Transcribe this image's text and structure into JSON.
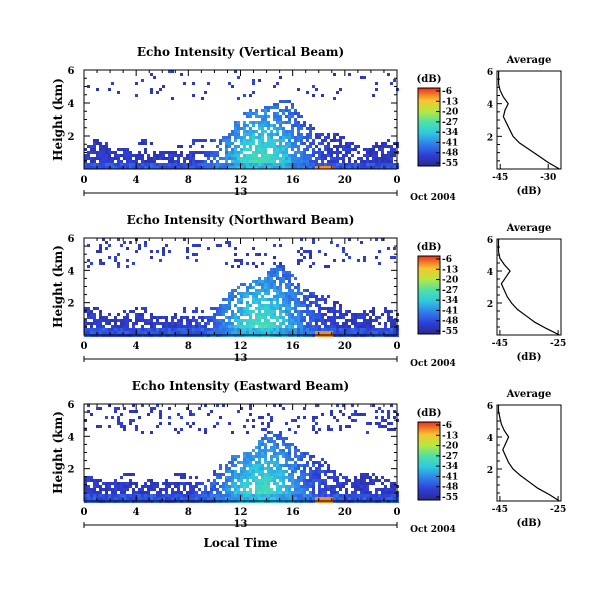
{
  "chart_data": [
    {
      "type": "heatmap",
      "title": "Echo Intensity (Vertical Beam)",
      "ylabel": "Height (km)",
      "xlabel": "",
      "x_ticks": [
        "0",
        "4",
        "8",
        "12",
        "16",
        "20",
        "0"
      ],
      "y_ticks": [
        "2",
        "4",
        "6"
      ],
      "xlim": [
        0,
        24
      ],
      "ylim": [
        0,
        6
      ],
      "day_marker": "13",
      "date_label": "Oct 2004",
      "colorbar": {
        "label": "(dB)",
        "ticks": [
          "-6",
          "-13",
          "-20",
          "-27",
          "-34",
          "-41",
          "-48",
          "-55"
        ],
        "range": [
          -55,
          -6
        ]
      },
      "profile": {
        "title": "Average",
        "xlabel": "(dB)",
        "x_ticks": [
          "-45",
          "-30"
        ],
        "y_ticks": [
          "2",
          "4",
          "6"
        ],
        "xlim": [
          -46,
          -26
        ],
        "ylim": [
          0,
          6
        ],
        "points": [
          [
            -26.5,
            0.0
          ],
          [
            -30,
            0.4
          ],
          [
            -33,
            0.8
          ],
          [
            -36,
            1.2
          ],
          [
            -39,
            1.6
          ],
          [
            -41,
            2.0
          ],
          [
            -42,
            2.4
          ],
          [
            -43,
            2.8
          ],
          [
            -44,
            3.2
          ],
          [
            -43.5,
            3.6
          ],
          [
            -42.5,
            4.0
          ],
          [
            -44,
            4.4
          ],
          [
            -45,
            4.8
          ],
          [
            -45.5,
            5.2
          ],
          [
            -45.5,
            5.6
          ],
          [
            -45.5,
            6.0
          ]
        ]
      }
    },
    {
      "type": "heatmap",
      "title": "Echo Intensity (Northward Beam)",
      "ylabel": "Height (km)",
      "xlabel": "",
      "x_ticks": [
        "0",
        "4",
        "8",
        "12",
        "16",
        "20",
        "0"
      ],
      "y_ticks": [
        "2",
        "4",
        "6"
      ],
      "xlim": [
        0,
        24
      ],
      "ylim": [
        0,
        6
      ],
      "day_marker": "13",
      "date_label": "Oct 2004",
      "colorbar": {
        "label": "(dB)",
        "ticks": [
          "-6",
          "-13",
          "-20",
          "-27",
          "-34",
          "-41",
          "-48",
          "-55"
        ],
        "range": [
          -55,
          -6
        ]
      },
      "profile": {
        "title": "Average",
        "xlabel": "(dB)",
        "x_ticks": [
          "-45",
          "-25"
        ],
        "y_ticks": [
          "2",
          "4",
          "6"
        ],
        "xlim": [
          -46,
          -24
        ],
        "ylim": [
          0,
          6
        ],
        "points": [
          [
            -24.5,
            0.0
          ],
          [
            -29,
            0.4
          ],
          [
            -33,
            0.8
          ],
          [
            -36,
            1.2
          ],
          [
            -39,
            1.6
          ],
          [
            -41,
            2.0
          ],
          [
            -42.5,
            2.4
          ],
          [
            -43.5,
            2.8
          ],
          [
            -44.5,
            3.2
          ],
          [
            -43,
            3.6
          ],
          [
            -41.5,
            4.0
          ],
          [
            -43.5,
            4.4
          ],
          [
            -45,
            4.8
          ],
          [
            -45.5,
            5.2
          ],
          [
            -45.5,
            5.6
          ],
          [
            -45.5,
            6.0
          ]
        ]
      }
    },
    {
      "type": "heatmap",
      "title": "Echo Intensity (Eastward Beam)",
      "ylabel": "Height (km)",
      "xlabel": "Local Time",
      "x_ticks": [
        "0",
        "4",
        "8",
        "12",
        "16",
        "20",
        "0"
      ],
      "y_ticks": [
        "2",
        "4",
        "6"
      ],
      "xlim": [
        0,
        24
      ],
      "ylim": [
        0,
        6
      ],
      "day_marker": "13",
      "date_label": "Oct 2004",
      "colorbar": {
        "label": "(dB)",
        "ticks": [
          "-6",
          "-13",
          "-20",
          "-27",
          "-34",
          "-41",
          "-48",
          "-55"
        ],
        "range": [
          -55,
          -6
        ]
      },
      "profile": {
        "title": "Average",
        "xlabel": "(dB)",
        "x_ticks": [
          "-45",
          "-25"
        ],
        "y_ticks": [
          "2",
          "4",
          "6"
        ],
        "xlim": [
          -46,
          -24
        ],
        "ylim": [
          0,
          6
        ],
        "points": [
          [
            -24.5,
            0.0
          ],
          [
            -28,
            0.4
          ],
          [
            -32,
            0.8
          ],
          [
            -35,
            1.2
          ],
          [
            -38,
            1.6
          ],
          [
            -40.5,
            2.0
          ],
          [
            -42,
            2.4
          ],
          [
            -43,
            2.8
          ],
          [
            -44,
            3.2
          ],
          [
            -43,
            3.6
          ],
          [
            -42,
            4.0
          ],
          [
            -43.5,
            4.4
          ],
          [
            -44.5,
            4.8
          ],
          [
            -45,
            5.2
          ],
          [
            -45.5,
            5.6
          ],
          [
            -45.5,
            6.0
          ]
        ]
      }
    }
  ]
}
